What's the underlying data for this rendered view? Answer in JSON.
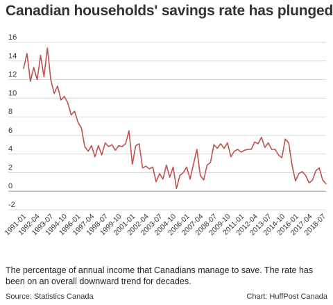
{
  "header": {
    "title": "Canadian households' savings rate has plunged..."
  },
  "footer": {
    "caption": "The percentage of annual income that Canadians manage to save. The rate has been on an overall downward trend for decades.",
    "source": "Source: Statistics Canada",
    "credit": "Chart: HuffPost Canada"
  },
  "colors": {
    "line": "#c0504d",
    "grid": "#d9d9d9",
    "zero_line": "#999999"
  },
  "chart_data": {
    "type": "line",
    "title": "Canadian households' savings rate has plunged...",
    "xlabel": "",
    "ylabel": "",
    "ylim": [
      -2,
      16
    ],
    "yticks": [
      16,
      14,
      12,
      10,
      8,
      6,
      4,
      2,
      0,
      -2
    ],
    "grid": true,
    "legend": "none",
    "xtick_labels": [
      "1991-01",
      "1992-04",
      "1993-07",
      "1994-10",
      "1996-01",
      "1997-04",
      "1998-07",
      "1999-10",
      "2001-01",
      "2002-04",
      "2003-07",
      "2004-10",
      "2006-01",
      "2007-04",
      "2008-07",
      "2009-10",
      "2011-01",
      "2012-04",
      "2013-07",
      "2014-10",
      "2016-01",
      "2017-04",
      "2018-07"
    ],
    "x_start": "1991-01",
    "x_end": "2018-10",
    "series": [
      {
        "values": [
          13.2,
          14.8,
          11.8,
          13.3,
          12.0,
          14.6,
          12.3,
          15.4,
          12.0,
          10.5,
          11.3,
          9.8,
          10.2,
          9.5,
          8.2,
          8.6,
          7.4,
          6.8,
          4.8,
          4.3,
          4.9,
          3.7,
          4.9,
          3.9,
          5.2,
          4.8,
          5.0,
          4.4,
          4.9,
          4.8,
          5.1,
          6.5,
          2.9,
          4.9,
          5.1,
          2.5,
          2.7,
          2.4,
          2.6,
          1.0,
          1.9,
          1.3,
          2.8,
          1.5,
          2.6,
          0.3,
          1.7,
          2.0,
          2.6,
          1.3,
          2.9,
          4.5,
          1.7,
          1.2,
          2.8,
          3.1,
          5.0,
          4.6,
          5.1,
          4.6,
          5.2,
          3.7,
          4.3,
          4.5,
          4.2,
          4.4,
          4.5,
          4.5,
          5.3,
          5.1,
          5.8,
          4.7,
          5.2,
          4.5,
          4.5,
          3.9,
          3.6,
          5.6,
          5.2,
          2.8,
          1.1,
          1.9,
          2.1,
          1.7,
          0.9,
          1.2,
          2.2,
          2.5,
          1.2,
          0.8
        ]
      }
    ]
  }
}
